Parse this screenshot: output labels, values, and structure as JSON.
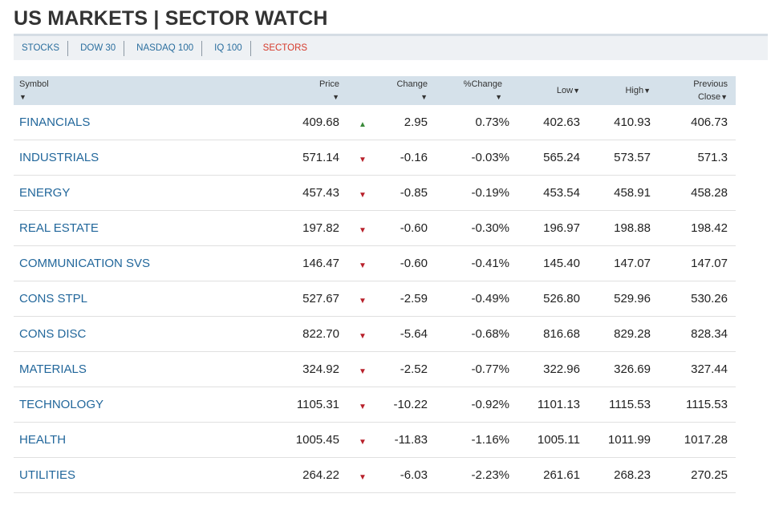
{
  "page_title": "US MARKETS | SECTOR WATCH",
  "tabs": [
    {
      "label": "STOCKS",
      "active": false
    },
    {
      "label": "DOW 30",
      "active": false
    },
    {
      "label": "NASDAQ 100",
      "active": false
    },
    {
      "label": "IQ 100",
      "active": false
    },
    {
      "label": "SECTORS",
      "active": true
    }
  ],
  "columns": {
    "symbol": "Symbol",
    "price": "Price",
    "change": "Change",
    "pct_change": "%Change",
    "low": "Low",
    "high": "High",
    "prev_close_line1": "Previous",
    "prev_close_line2": "Close",
    "sort_arrow": "▼"
  },
  "rows": [
    {
      "symbol": "FINANCIALS",
      "price": "409.68",
      "dir": "▲",
      "dir_class": "up",
      "change": "2.95",
      "pct": "0.73%",
      "low": "402.63",
      "high": "410.93",
      "prev": "406.73"
    },
    {
      "symbol": "INDUSTRIALS",
      "price": "571.14",
      "dir": "▼",
      "dir_class": "down",
      "change": "-0.16",
      "pct": "-0.03%",
      "low": "565.24",
      "high": "573.57",
      "prev": "571.3"
    },
    {
      "symbol": "ENERGY",
      "price": "457.43",
      "dir": "▼",
      "dir_class": "down",
      "change": "-0.85",
      "pct": "-0.19%",
      "low": "453.54",
      "high": "458.91",
      "prev": "458.28"
    },
    {
      "symbol": "REAL ESTATE",
      "price": "197.82",
      "dir": "▼",
      "dir_class": "down",
      "change": "-0.60",
      "pct": "-0.30%",
      "low": "196.97",
      "high": "198.88",
      "prev": "198.42"
    },
    {
      "symbol": "COMMUNICATION SVS",
      "price": "146.47",
      "dir": "▼",
      "dir_class": "down",
      "change": "-0.60",
      "pct": "-0.41%",
      "low": "145.40",
      "high": "147.07",
      "prev": "147.07"
    },
    {
      "symbol": "CONS STPL",
      "price": "527.67",
      "dir": "▼",
      "dir_class": "down",
      "change": "-2.59",
      "pct": "-0.49%",
      "low": "526.80",
      "high": "529.96",
      "prev": "530.26"
    },
    {
      "symbol": "CONS DISC",
      "price": "822.70",
      "dir": "▼",
      "dir_class": "down",
      "change": "-5.64",
      "pct": "-0.68%",
      "low": "816.68",
      "high": "829.28",
      "prev": "828.34"
    },
    {
      "symbol": "MATERIALS",
      "price": "324.92",
      "dir": "▼",
      "dir_class": "down",
      "change": "-2.52",
      "pct": "-0.77%",
      "low": "322.96",
      "high": "326.69",
      "prev": "327.44"
    },
    {
      "symbol": "TECHNOLOGY",
      "price": "1105.31",
      "dir": "▼",
      "dir_class": "down",
      "change": "-10.22",
      "pct": "-0.92%",
      "low": "1101.13",
      "high": "1115.53",
      "prev": "1115.53"
    },
    {
      "symbol": "HEALTH",
      "price": "1005.45",
      "dir": "▼",
      "dir_class": "down",
      "change": "-11.83",
      "pct": "-1.16%",
      "low": "1005.11",
      "high": "1011.99",
      "prev": "1017.28"
    },
    {
      "symbol": "UTILITIES",
      "price": "264.22",
      "dir": "▼",
      "dir_class": "down",
      "change": "-6.03",
      "pct": "-2.23%",
      "low": "261.61",
      "high": "268.23",
      "prev": "270.25"
    }
  ],
  "colors": {
    "up": "#3a8a3a",
    "down": "#b8202a",
    "link": "#22679b",
    "active_tab": "#d63a2b",
    "header_bg": "#d5e1ea"
  }
}
